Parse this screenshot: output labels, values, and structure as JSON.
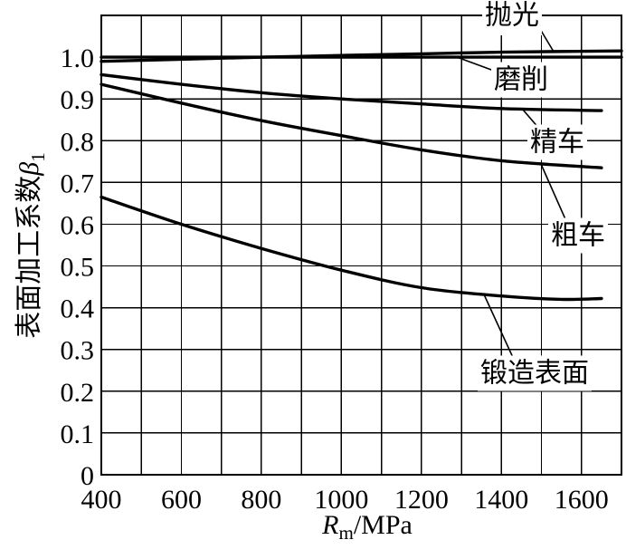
{
  "chart_data": {
    "type": "line",
    "xlabel": {
      "symbol": "R",
      "sub": "m",
      "unit": "/MPa"
    },
    "ylabel": {
      "text": "表面加工系数",
      "symbol": "β",
      "sub": "1"
    },
    "xlim": [
      400,
      1700
    ],
    "ylim": [
      0,
      1.1
    ],
    "xticks": [
      400,
      600,
      800,
      1000,
      1200,
      1400,
      1600
    ],
    "xtick_labels": [
      "400",
      "600",
      "800",
      "1000",
      "1200",
      "1400",
      "1600"
    ],
    "yticks": [
      0,
      0.1,
      0.2,
      0.3,
      0.4,
      0.5,
      0.6,
      0.7,
      0.8,
      0.9,
      1.0
    ],
    "ytick_labels": [
      "0",
      "0.1",
      "0.2",
      "0.3",
      "0.4",
      "0.5",
      "0.6",
      "0.7",
      "0.8",
      "0.9",
      "1.0"
    ],
    "grid": true,
    "x_grid_step": 100,
    "y_grid_step": 0.1,
    "colors": {
      "line": "#000000",
      "grid": "#000000",
      "background": "#ffffff"
    },
    "series": [
      {
        "name": "抛光",
        "x": [
          400,
          600,
          800,
          1000,
          1200,
          1400,
          1700
        ],
        "y": [
          0.99,
          0.995,
          1.0,
          1.004,
          1.008,
          1.012,
          1.015
        ]
      },
      {
        "name": "磨削",
        "x": [
          400,
          1700
        ],
        "y": [
          1.0,
          1.0
        ]
      },
      {
        "name": "精车",
        "x": [
          400,
          600,
          800,
          1000,
          1200,
          1400,
          1650
        ],
        "y": [
          0.958,
          0.935,
          0.915,
          0.9,
          0.888,
          0.877,
          0.872
        ]
      },
      {
        "name": "粗车",
        "x": [
          400,
          600,
          800,
          1000,
          1200,
          1400,
          1650
        ],
        "y": [
          0.935,
          0.89,
          0.848,
          0.812,
          0.778,
          0.752,
          0.735
        ]
      },
      {
        "name": "锻造表面",
        "x": [
          400,
          600,
          800,
          1000,
          1200,
          1400,
          1550,
          1650
        ],
        "y": [
          0.665,
          0.6,
          0.542,
          0.49,
          0.448,
          0.428,
          0.42,
          0.422
        ]
      }
    ]
  }
}
